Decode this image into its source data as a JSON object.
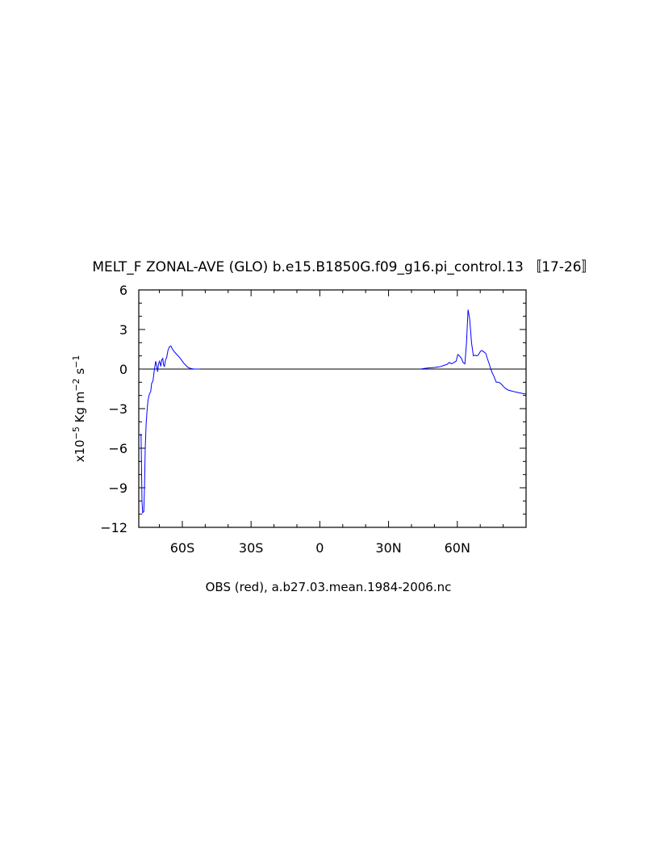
{
  "chart_data": {
    "type": "line",
    "title": "MELT_F ZONAL-AVE (GLO) b.e15.B1850G.f09_g16.pi_control.13 〚17-26〛",
    "xlabel": "OBS (red), a.b27.03.mean.1984-2006.nc",
    "ylabel": {
      "prefix": "x10",
      "exp": "−5",
      "units_a": " Kg m",
      "exp_m": "−2",
      "units_b": " s",
      "exp_s": "−1"
    },
    "xlim": [
      -79,
      90
    ],
    "ylim": [
      -12,
      6
    ],
    "x_ticks": [
      {
        "value": -60,
        "label": "60S"
      },
      {
        "value": -30,
        "label": "30S"
      },
      {
        "value": 0,
        "label": "0"
      },
      {
        "value": 30,
        "label": "30N"
      },
      {
        "value": 60,
        "label": "60N"
      }
    ],
    "y_ticks": [
      {
        "value": 6,
        "label": "6"
      },
      {
        "value": 3,
        "label": "3"
      },
      {
        "value": 0,
        "label": "0"
      },
      {
        "value": -3,
        "label": "−3"
      },
      {
        "value": -6,
        "label": "−6"
      },
      {
        "value": -9,
        "label": "−9"
      },
      {
        "value": -12,
        "label": "−12"
      }
    ],
    "zero_line": true,
    "grid": false,
    "series": [
      {
        "color": "#0000ff",
        "x": [
          -78.0,
          -77.6,
          -77.3,
          -76.8,
          -76.5,
          -76.2,
          -75.8,
          -75.4,
          -75.0,
          -74.4,
          -73.8,
          -73.4,
          -72.8,
          -72.3,
          -71.9,
          -71.6,
          -71.3,
          -70.8,
          -70.4,
          -69.9,
          -69.4,
          -69.0,
          -68.5,
          -68.2,
          -67.8,
          -67.3,
          -66.8,
          -66.3,
          -65.6,
          -65.0,
          -64.3,
          -63.4,
          -62.4,
          -61.3,
          -60.4,
          -59.4,
          -58.3,
          -57.3,
          -56.3,
          -55.4,
          -54.4,
          -53.2,
          -52.4,
          44.0,
          45.5,
          47.0,
          48.5,
          50.0,
          51.5,
          53.0,
          54.5,
          55.5,
          56.5,
          57.5,
          58.5,
          59.5,
          60.2,
          61.0,
          61.8,
          62.5,
          63.3,
          64.0,
          64.7,
          65.4,
          66.2,
          67.0,
          67.8,
          68.5,
          69.3,
          70.1,
          70.8,
          71.6,
          72.4,
          73.1,
          73.9,
          74.6,
          75.3,
          76.1,
          77.0,
          78.0,
          79.0,
          80.0,
          81.2,
          82.3,
          83.4,
          84.6,
          85.8,
          87.0,
          88.5,
          90.0
        ],
        "values": [
          -4.9,
          -10.0,
          -10.9,
          -10.8,
          -9.0,
          -6.0,
          -4.2,
          -3.2,
          -2.4,
          -1.9,
          -1.7,
          -1.1,
          -0.9,
          -0.2,
          0.3,
          0.6,
          0.3,
          -0.2,
          0.4,
          0.6,
          0.2,
          0.7,
          0.8,
          0.3,
          0.2,
          0.7,
          0.9,
          1.4,
          1.7,
          1.75,
          1.5,
          1.3,
          1.1,
          0.9,
          0.7,
          0.45,
          0.25,
          0.1,
          0.05,
          0.02,
          0.0,
          0.0,
          0.0,
          0.0,
          0.05,
          0.08,
          0.1,
          0.12,
          0.15,
          0.2,
          0.3,
          0.35,
          0.5,
          0.4,
          0.5,
          0.6,
          1.1,
          1.0,
          0.8,
          0.5,
          0.4,
          2.0,
          4.5,
          3.8,
          2.0,
          1.0,
          1.05,
          1.0,
          1.1,
          1.35,
          1.4,
          1.3,
          1.2,
          0.8,
          0.4,
          0.0,
          -0.3,
          -0.6,
          -1.0,
          -1.0,
          -1.1,
          -1.3,
          -1.5,
          -1.6,
          -1.65,
          -1.7,
          -1.75,
          -1.8,
          -1.85,
          -1.9
        ]
      }
    ]
  }
}
